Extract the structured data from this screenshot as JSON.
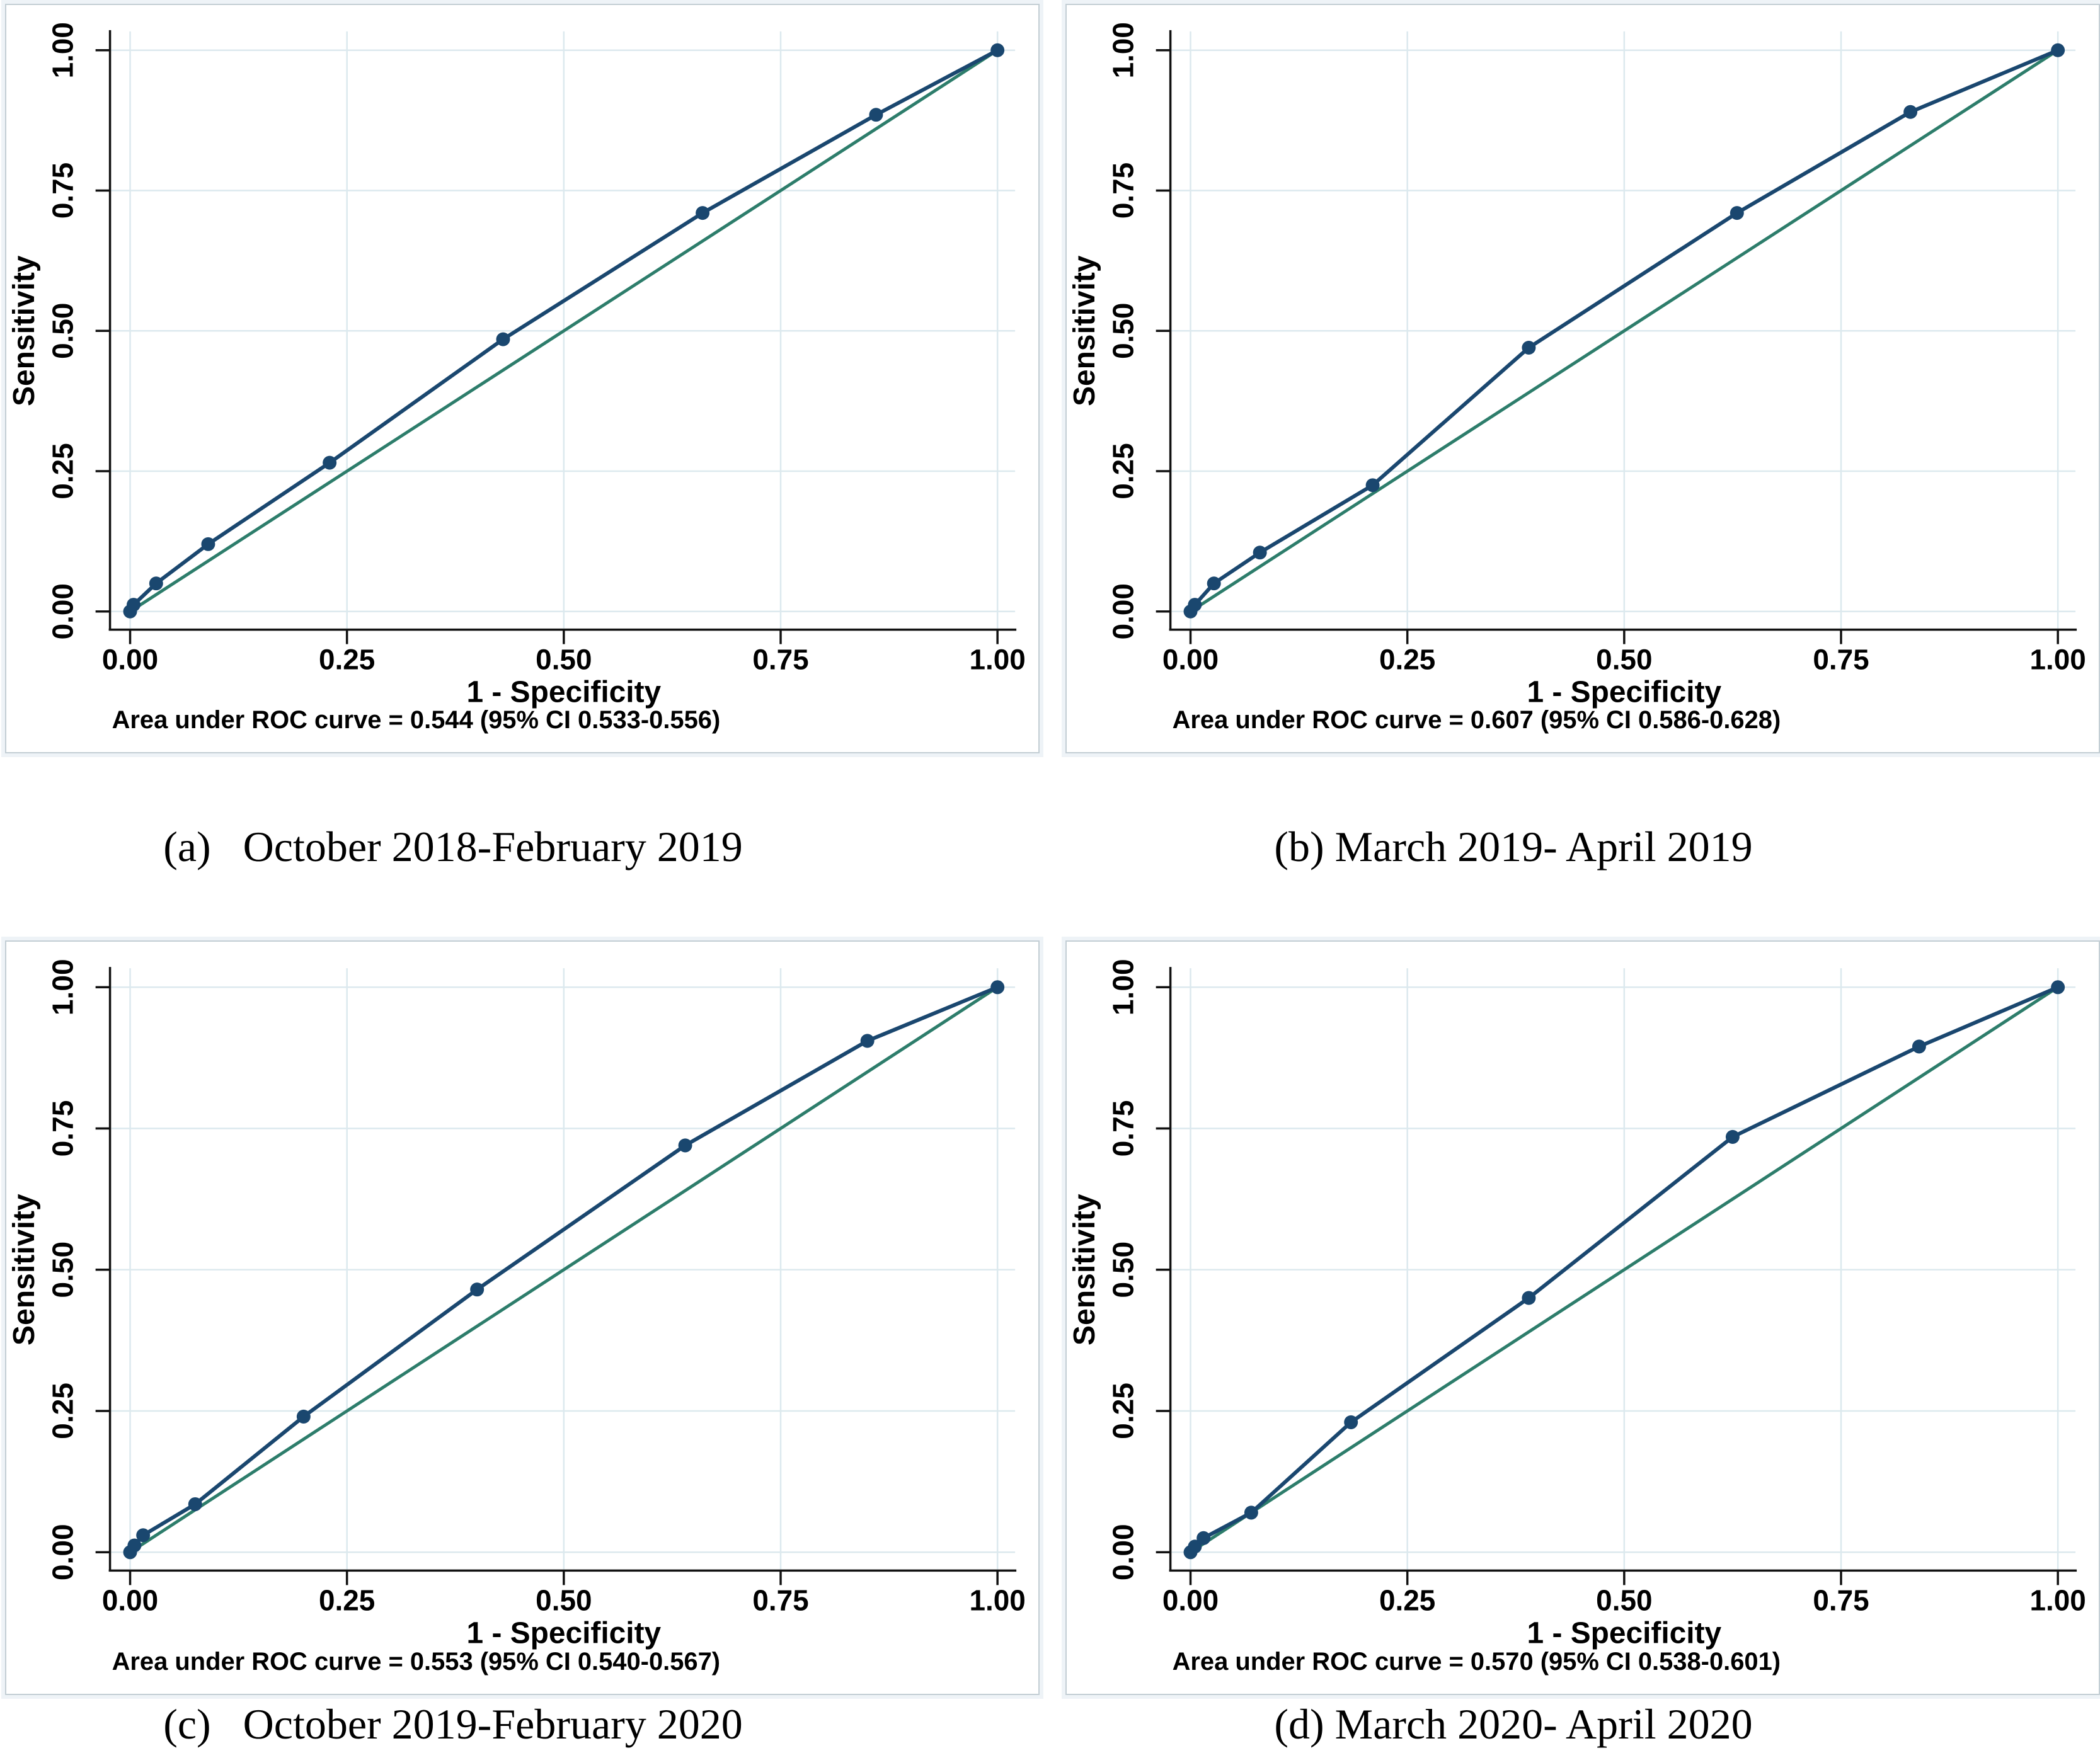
{
  "colors": {
    "roc_line": "#1a476f",
    "reference_line": "#2d7d6b",
    "grid": "#dce9ee",
    "axis": "#111111",
    "panel_border": "#c3ced4",
    "panel_background": "#ffffff",
    "graph_region_band": "#eef3f7"
  },
  "chart_data": [
    {
      "id": "a",
      "type": "line",
      "caption": "(a)   October 2018-February 2019",
      "xlabel": "1 - Specificity",
      "ylabel": "Sensitivity",
      "xlim": [
        0,
        1
      ],
      "ylim": [
        0,
        1
      ],
      "grid": true,
      "xticks": {
        "values": [
          0,
          0.25,
          0.5,
          0.75,
          1
        ],
        "labels": [
          "0.00",
          "0.25",
          "0.50",
          "0.75",
          "1.00"
        ]
      },
      "yticks": {
        "values": [
          0,
          0.25,
          0.5,
          0.75,
          1
        ],
        "labels": [
          "0.00",
          "0.25",
          "0.50",
          "0.75",
          "1.00"
        ]
      },
      "auc": 0.544,
      "ci": "0.533-0.556",
      "note": "Area under ROC curve = 0.544 (95% CI 0.533-0.556)",
      "series": [
        {
          "name": "Reference diagonal",
          "color": "reference_line",
          "markers": false,
          "width": 5,
          "points": [
            [
              0,
              0
            ],
            [
              1,
              1
            ]
          ]
        },
        {
          "name": "ROC curve",
          "color": "roc_line",
          "markers": true,
          "width": 6,
          "points": [
            [
              0,
              0
            ],
            [
              0.004,
              0.012
            ],
            [
              0.03,
              0.05
            ],
            [
              0.09,
              0.12
            ],
            [
              0.23,
              0.265
            ],
            [
              0.43,
              0.485
            ],
            [
              0.66,
              0.71
            ],
            [
              0.86,
              0.885
            ],
            [
              1,
              1
            ]
          ]
        }
      ]
    },
    {
      "id": "b",
      "type": "line",
      "caption": "(b) March 2019- April 2019",
      "xlabel": "1 - Specificity",
      "ylabel": "Sensitivity",
      "xlim": [
        0,
        1
      ],
      "ylim": [
        0,
        1
      ],
      "grid": true,
      "xticks": {
        "values": [
          0,
          0.25,
          0.5,
          0.75,
          1
        ],
        "labels": [
          "0.00",
          "0.25",
          "0.50",
          "0.75",
          "1.00"
        ]
      },
      "yticks": {
        "values": [
          0,
          0.25,
          0.5,
          0.75,
          1
        ],
        "labels": [
          "0.00",
          "0.25",
          "0.50",
          "0.75",
          "1.00"
        ]
      },
      "auc": 0.607,
      "ci": "0.586-0.628",
      "note": "Area under ROC curve = 0.607 (95% CI 0.586-0.628)",
      "series": [
        {
          "name": "Reference diagonal",
          "color": "reference_line",
          "markers": false,
          "width": 5,
          "points": [
            [
              0,
              0
            ],
            [
              1,
              1
            ]
          ]
        },
        {
          "name": "ROC curve",
          "color": "roc_line",
          "markers": true,
          "width": 6,
          "points": [
            [
              0,
              0
            ],
            [
              0.005,
              0.012
            ],
            [
              0.027,
              0.05
            ],
            [
              0.08,
              0.105
            ],
            [
              0.21,
              0.225
            ],
            [
              0.39,
              0.47
            ],
            [
              0.63,
              0.71
            ],
            [
              0.83,
              0.89
            ],
            [
              1,
              1
            ]
          ]
        }
      ]
    },
    {
      "id": "c",
      "type": "line",
      "caption": "(c)   October 2019-February 2020",
      "xlabel": "1 - Specificity",
      "ylabel": "Sensitivity",
      "xlim": [
        0,
        1
      ],
      "ylim": [
        0,
        1
      ],
      "grid": true,
      "xticks": {
        "values": [
          0,
          0.25,
          0.5,
          0.75,
          1
        ],
        "labels": [
          "0.00",
          "0.25",
          "0.50",
          "0.75",
          "1.00"
        ]
      },
      "yticks": {
        "values": [
          0,
          0.25,
          0.5,
          0.75,
          1
        ],
        "labels": [
          "0.00",
          "0.25",
          "0.50",
          "0.75",
          "1.00"
        ]
      },
      "auc": 0.553,
      "ci": "0.540-0.567",
      "note": "Area under ROC curve = 0.553 (95% CI 0.540-0.567)",
      "series": [
        {
          "name": "Reference diagonal",
          "color": "reference_line",
          "markers": false,
          "width": 5,
          "points": [
            [
              0,
              0
            ],
            [
              1,
              1
            ]
          ]
        },
        {
          "name": "ROC curve",
          "color": "roc_line",
          "markers": true,
          "width": 6,
          "points": [
            [
              0,
              0
            ],
            [
              0.005,
              0.012
            ],
            [
              0.015,
              0.03
            ],
            [
              0.075,
              0.085
            ],
            [
              0.2,
              0.24
            ],
            [
              0.4,
              0.465
            ],
            [
              0.64,
              0.72
            ],
            [
              0.85,
              0.905
            ],
            [
              1,
              1
            ]
          ]
        }
      ]
    },
    {
      "id": "d",
      "type": "line",
      "caption": "(d) March 2020- April 2020",
      "xlabel": "1 - Specificity",
      "ylabel": "Sensitivity",
      "xlim": [
        0,
        1
      ],
      "ylim": [
        0,
        1
      ],
      "grid": true,
      "xticks": {
        "values": [
          0,
          0.25,
          0.5,
          0.75,
          1
        ],
        "labels": [
          "0.00",
          "0.25",
          "0.50",
          "0.75",
          "1.00"
        ]
      },
      "yticks": {
        "values": [
          0,
          0.25,
          0.5,
          0.75,
          1
        ],
        "labels": [
          "0.00",
          "0.25",
          "0.50",
          "0.75",
          "1.00"
        ]
      },
      "auc": 0.57,
      "ci": "0.538-0.601",
      "note": "Area under ROC curve = 0.570 (95% CI 0.538-0.601)",
      "series": [
        {
          "name": "Reference diagonal",
          "color": "reference_line",
          "markers": false,
          "width": 5,
          "points": [
            [
              0,
              0
            ],
            [
              1,
              1
            ]
          ]
        },
        {
          "name": "ROC curve",
          "color": "roc_line",
          "markers": true,
          "width": 6,
          "points": [
            [
              0,
              0
            ],
            [
              0.005,
              0.01
            ],
            [
              0.015,
              0.025
            ],
            [
              0.07,
              0.07
            ],
            [
              0.185,
              0.23
            ],
            [
              0.39,
              0.45
            ],
            [
              0.625,
              0.735
            ],
            [
              0.84,
              0.895
            ],
            [
              1,
              1
            ]
          ]
        }
      ]
    }
  ]
}
